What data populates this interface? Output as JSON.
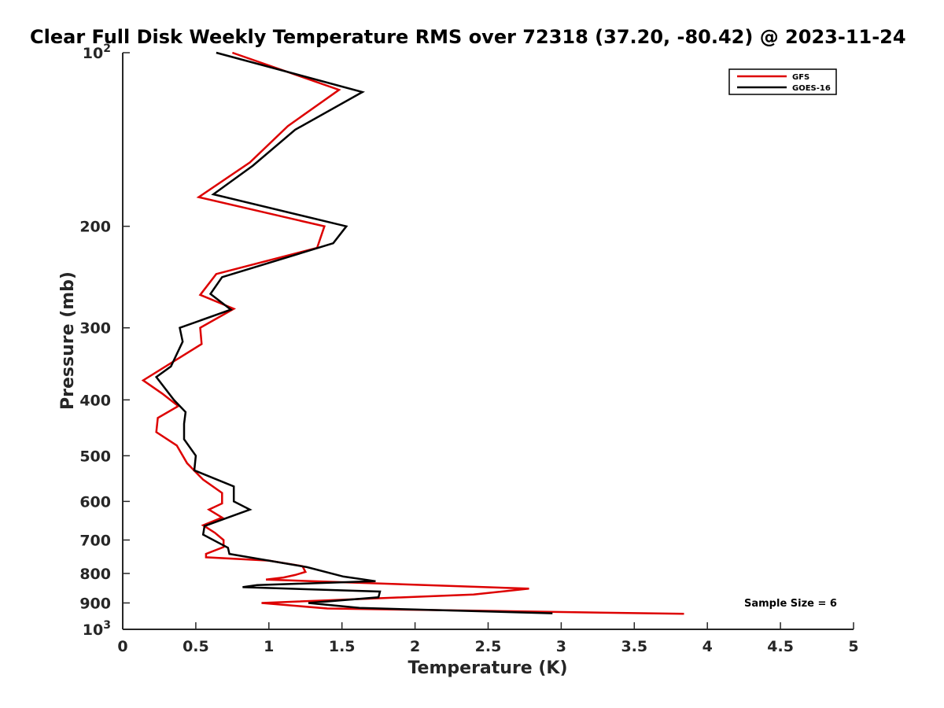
{
  "chart_data": {
    "type": "line",
    "title": "Clear Full Disk Weekly Temperature RMS over 72318 (37.20, -80.42) @ 2023-11-24",
    "xlabel": "Temperature (K)",
    "ylabel": "Pressure (mb)",
    "xlim": [
      0,
      5
    ],
    "ylim": [
      100,
      1000
    ],
    "y_scale": "log",
    "y_reversed": true,
    "x_ticks": [
      "0",
      "0.5",
      "1",
      "1.5",
      "2",
      "2.5",
      "3",
      "3.5",
      "4",
      "4.5",
      "5"
    ],
    "y_ticks": [
      {
        "value": 100,
        "base": "10",
        "exp": "2"
      },
      {
        "value": 200,
        "label": "200"
      },
      {
        "value": 300,
        "label": "300"
      },
      {
        "value": 400,
        "label": "400"
      },
      {
        "value": 500,
        "label": "500"
      },
      {
        "value": 600,
        "label": "600"
      },
      {
        "value": 700,
        "label": "700"
      },
      {
        "value": 800,
        "label": "800"
      },
      {
        "value": 900,
        "label": "900"
      },
      {
        "value": 1000,
        "base": "10",
        "exp": "3"
      }
    ],
    "legend_position": "top-right",
    "grid": false,
    "annotation": "Sample Size = 6",
    "series": [
      {
        "name": "GFS",
        "color": "#dd0000",
        "points": [
          [
            0.75,
            100
          ],
          [
            1.48,
            116
          ],
          [
            1.13,
            134
          ],
          [
            0.87,
            155
          ],
          [
            0.52,
            178
          ],
          [
            1.38,
            200
          ],
          [
            1.33,
            218
          ],
          [
            0.64,
            242
          ],
          [
            0.53,
            263
          ],
          [
            0.76,
            278
          ],
          [
            0.53,
            300
          ],
          [
            0.54,
            320
          ],
          [
            0.14,
            370
          ],
          [
            0.27,
            390
          ],
          [
            0.38,
            410
          ],
          [
            0.24,
            430
          ],
          [
            0.23,
            455
          ],
          [
            0.37,
            480
          ],
          [
            0.44,
            515
          ],
          [
            0.55,
            550
          ],
          [
            0.68,
            580
          ],
          [
            0.68,
            605
          ],
          [
            0.59,
            620
          ],
          [
            0.68,
            640
          ],
          [
            0.55,
            660
          ],
          [
            0.63,
            680
          ],
          [
            0.69,
            700
          ],
          [
            0.69,
            720
          ],
          [
            0.57,
            740
          ],
          [
            0.57,
            750
          ],
          [
            1.0,
            760
          ],
          [
            1.23,
            777
          ],
          [
            1.25,
            795
          ],
          [
            1.18,
            805
          ],
          [
            1.1,
            813
          ],
          [
            0.98,
            820
          ],
          [
            2.78,
            850
          ],
          [
            2.4,
            870
          ],
          [
            0.95,
            900
          ],
          [
            1.4,
            920
          ],
          [
            3.84,
            940
          ]
        ]
      },
      {
        "name": "GOES-16",
        "color": "#000000",
        "points": [
          [
            0.64,
            100
          ],
          [
            1.64,
            117
          ],
          [
            1.18,
            136
          ],
          [
            0.89,
            157
          ],
          [
            0.62,
            176
          ],
          [
            1.53,
            200
          ],
          [
            1.44,
            214
          ],
          [
            0.68,
            245
          ],
          [
            0.6,
            262
          ],
          [
            0.74,
            279
          ],
          [
            0.39,
            300
          ],
          [
            0.41,
            317
          ],
          [
            0.33,
            350
          ],
          [
            0.23,
            365
          ],
          [
            0.35,
            400
          ],
          [
            0.43,
            420
          ],
          [
            0.42,
            440
          ],
          [
            0.42,
            468
          ],
          [
            0.5,
            500
          ],
          [
            0.49,
            530
          ],
          [
            0.76,
            565
          ],
          [
            0.76,
            600
          ],
          [
            0.87,
            620
          ],
          [
            0.56,
            662
          ],
          [
            0.55,
            685
          ],
          [
            0.72,
            722
          ],
          [
            0.73,
            740
          ],
          [
            1.26,
            780
          ],
          [
            1.51,
            810
          ],
          [
            1.73,
            825
          ],
          [
            0.92,
            838
          ],
          [
            0.82,
            845
          ],
          [
            1.76,
            860
          ],
          [
            1.75,
            880
          ],
          [
            1.27,
            900
          ],
          [
            1.62,
            918
          ],
          [
            2.94,
            938
          ]
        ]
      }
    ]
  }
}
